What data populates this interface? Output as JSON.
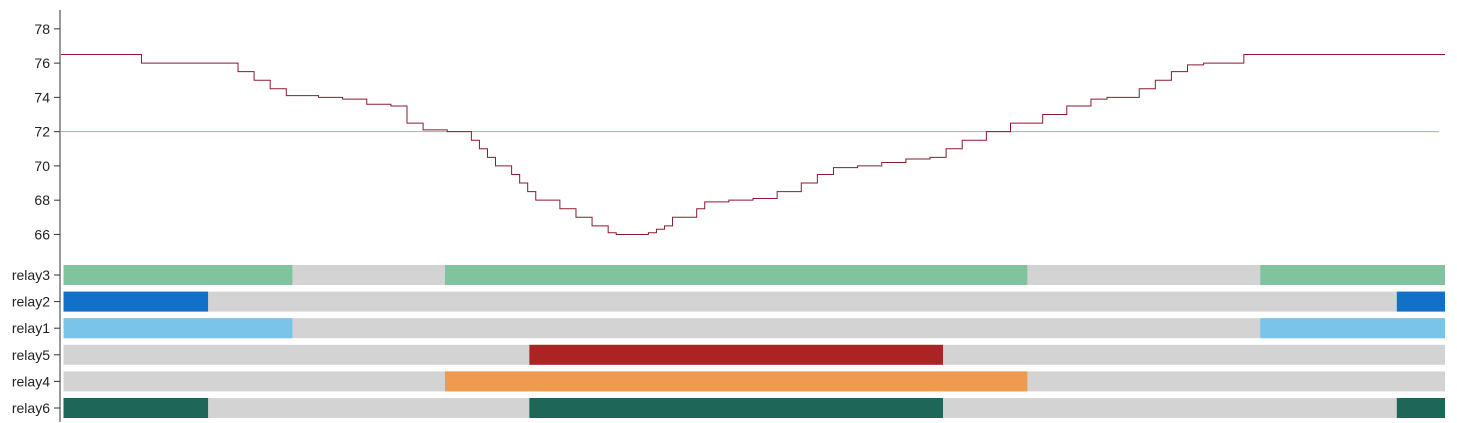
{
  "chart_data": [
    {
      "type": "line",
      "title": "",
      "xlabel": "",
      "ylabel": "",
      "ylim": [
        64.8,
        79.1
      ],
      "yticks": [
        66,
        68,
        70,
        72,
        74,
        76,
        78
      ],
      "x": [
        0,
        16,
        20,
        40,
        44,
        48,
        52,
        56,
        60,
        64,
        66,
        70,
        76,
        82,
        84,
        86,
        90,
        96,
        100,
        102,
        104,
        106,
        108,
        110,
        112,
        114,
        116,
        118,
        120,
        124,
        128,
        132,
        136,
        138,
        140,
        142,
        146,
        148,
        150,
        152,
        156,
        158,
        160,
        166,
        172,
        178,
        184,
        188,
        192,
        198,
        204,
        210,
        216,
        220,
        224,
        230,
        236,
        244,
        250,
        256,
        260,
        264,
        268,
        272,
        276,
        280,
        284,
        290,
        294,
        298,
        304,
        308,
        312,
        318,
        322,
        326,
        330,
        336,
        340,
        344
      ],
      "series": [
        {
          "values": [
            76.5,
            76.5,
            76.0,
            76.0,
            75.5,
            75.0,
            74.5,
            74.1,
            74.1,
            74.0,
            74.0,
            73.9,
            73.6,
            73.5,
            73.5,
            72.5,
            72.1,
            72.0,
            72.0,
            71.5,
            71.0,
            70.5,
            70.0,
            70.0,
            69.5,
            69.0,
            68.5,
            68.0,
            68.0,
            67.5,
            67.0,
            66.5,
            66.1,
            66.0,
            66.0,
            66.0,
            66.1,
            66.3,
            66.5,
            67.0,
            67.0,
            67.5,
            67.9,
            68.0,
            68.1,
            68.5,
            69.0,
            69.5,
            69.9,
            70.0,
            70.2,
            70.4,
            70.5,
            71.0,
            71.5,
            72.0,
            72.5,
            73.0,
            73.5,
            73.9,
            74.0,
            74.0,
            74.5,
            75.0,
            75.5,
            75.9,
            76.0,
            76.0,
            76.5,
            76.5,
            76.5,
            76.5,
            76.5,
            76.5,
            76.5,
            76.5,
            76.5,
            76.5,
            76.5,
            76.5
          ],
          "color": "#8b1a2e"
        }
      ],
      "reference_line": {
        "y": 72,
        "color": "#7fb8e0"
      }
    },
    {
      "type": "timeline",
      "x_range": [
        0,
        344
      ],
      "background_color": "#d3d3d3",
      "rows": [
        {
          "label": "relay3",
          "color": "#7fc49e",
          "on": [
            [
              0,
              57
            ],
            [
              95,
              240
            ],
            [
              298,
              344
            ]
          ]
        },
        {
          "label": "relay2",
          "color": "#1170c8",
          "on": [
            [
              0,
              36
            ],
            [
              332,
              344
            ]
          ]
        },
        {
          "label": "relay1",
          "color": "#7ac4ea",
          "on": [
            [
              0,
              57
            ],
            [
              298,
              344
            ]
          ]
        },
        {
          "label": "relay5",
          "color": "#aa2424",
          "on": [
            [
              116,
              219
            ]
          ]
        },
        {
          "label": "relay4",
          "color": "#ef9a4e",
          "on": [
            [
              95,
              240
            ]
          ]
        },
        {
          "label": "relay6",
          "color": "#1e6658",
          "on": [
            [
              0,
              36
            ],
            [
              116,
              219
            ],
            [
              332,
              344
            ]
          ]
        }
      ]
    }
  ]
}
